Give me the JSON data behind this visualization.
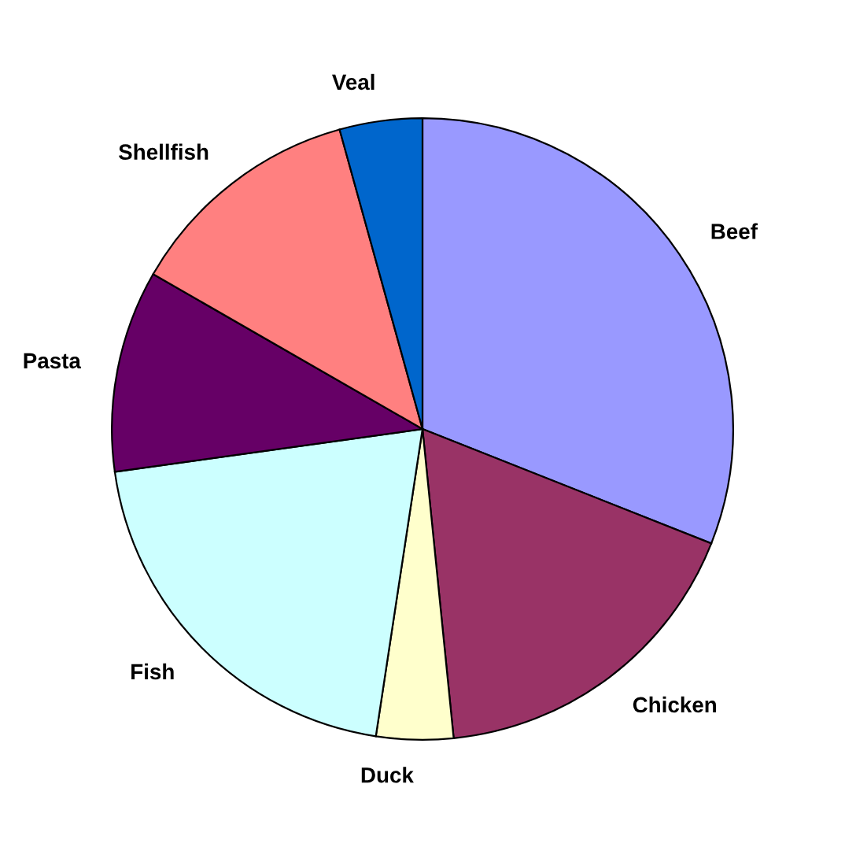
{
  "chart_data": {
    "type": "pie",
    "categories": [
      "Beef",
      "Chicken",
      "Duck",
      "Fish",
      "Pasta",
      "Shellfish",
      "Veal"
    ],
    "values": [
      31,
      17.4,
      4,
      20.4,
      10.5,
      12.4,
      4.3
    ],
    "colors": [
      "#9999ff",
      "#993366",
      "#ffffcc",
      "#ccffff",
      "#660066",
      "#ff8080",
      "#0066cc"
    ],
    "legend": false
  }
}
